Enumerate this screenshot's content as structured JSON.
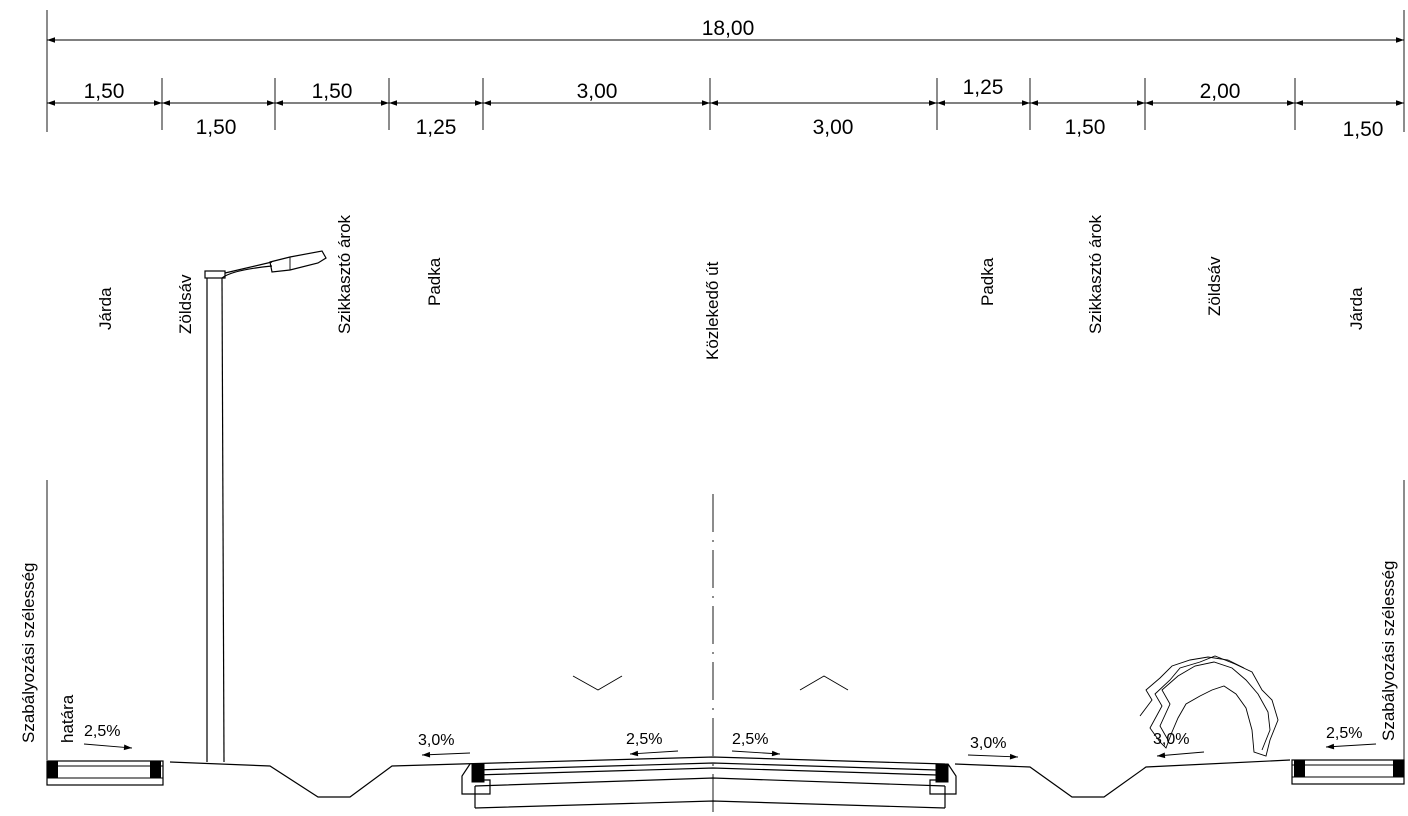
{
  "total_dimension": "18,00",
  "segment_dimensions": [
    "1,50",
    "1,50",
    "1,50",
    "1,25",
    "3,00",
    "3,00",
    "1,25",
    "1,50",
    "2,00",
    "1,50"
  ],
  "zone_labels": [
    "Járda",
    "Zöldsáv",
    "Szikkasztó árok",
    "Padka",
    "Közlekedő út",
    "Padka",
    "Szikkasztó árok",
    "Zöldsáv",
    "Járda"
  ],
  "boundary_left": {
    "line1": "Szabályozási szélesség",
    "line2": "határa"
  },
  "boundary_right": {
    "line1": "Szabályozási szélesség"
  },
  "slopes": [
    "2,5%",
    "3,0%",
    "2,5%",
    "2,5%",
    "3,0%",
    "3,0%",
    "2,5%"
  ]
}
